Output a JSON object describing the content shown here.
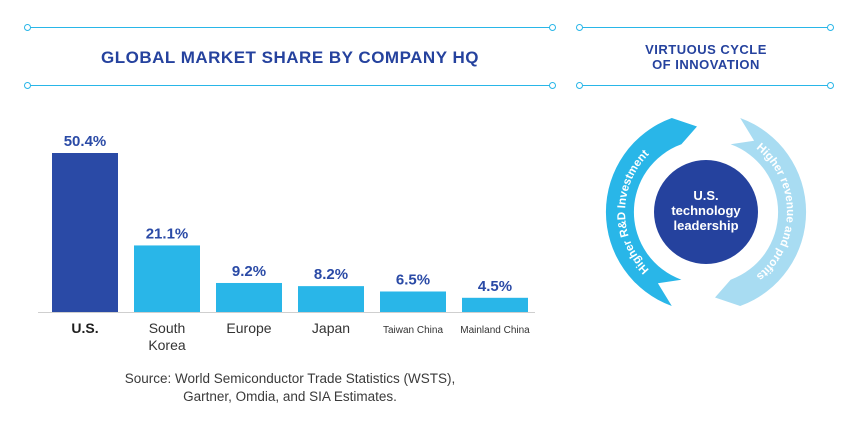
{
  "chart_data": {
    "type": "bar",
    "title": "GLOBAL MARKET SHARE BY COMPANY HQ",
    "categories": [
      "U.S.",
      "South Korea",
      "Europe",
      "Japan",
      "Taiwan China",
      "Mainland China"
    ],
    "category_lines": [
      [
        "U.S."
      ],
      [
        "South",
        "Korea"
      ],
      [
        "Europe"
      ],
      [
        "Japan"
      ],
      [
        "Taiwan China"
      ],
      [
        "Mainland China"
      ]
    ],
    "values": [
      50.4,
      21.1,
      9.2,
      8.2,
      6.5,
      4.5
    ],
    "value_labels": [
      "50.4%",
      "21.1%",
      "9.2%",
      "8.2%",
      "6.5%",
      "4.5%"
    ],
    "unit": "%",
    "ylim": [
      0,
      50.4
    ],
    "grid": false,
    "colors": {
      "highlight": "#2a4aa6",
      "default": "#29b6e8",
      "label": "#2a4aa6"
    }
  },
  "source_lines": [
    "Source: World Semiconductor Trade Statistics (WSTS),",
    "Gartner, Omdia, and SIA Estimates."
  ],
  "cycle": {
    "title_lines": [
      "VIRTUOUS CYCLE",
      "OF INNOVATION"
    ],
    "center_lines": [
      "U.S.",
      "technology",
      "leadership"
    ],
    "left_arc_label": "Higher R&D Investment",
    "right_arc_label": "Higher revenue and profits",
    "colors": {
      "center": "#25429e",
      "left_arc": "#29b6e8",
      "right_arc": "#a8dcf2",
      "arc_text": "#ffffff"
    }
  },
  "accent_color": "#29b6e8",
  "title_color": "#25429e"
}
